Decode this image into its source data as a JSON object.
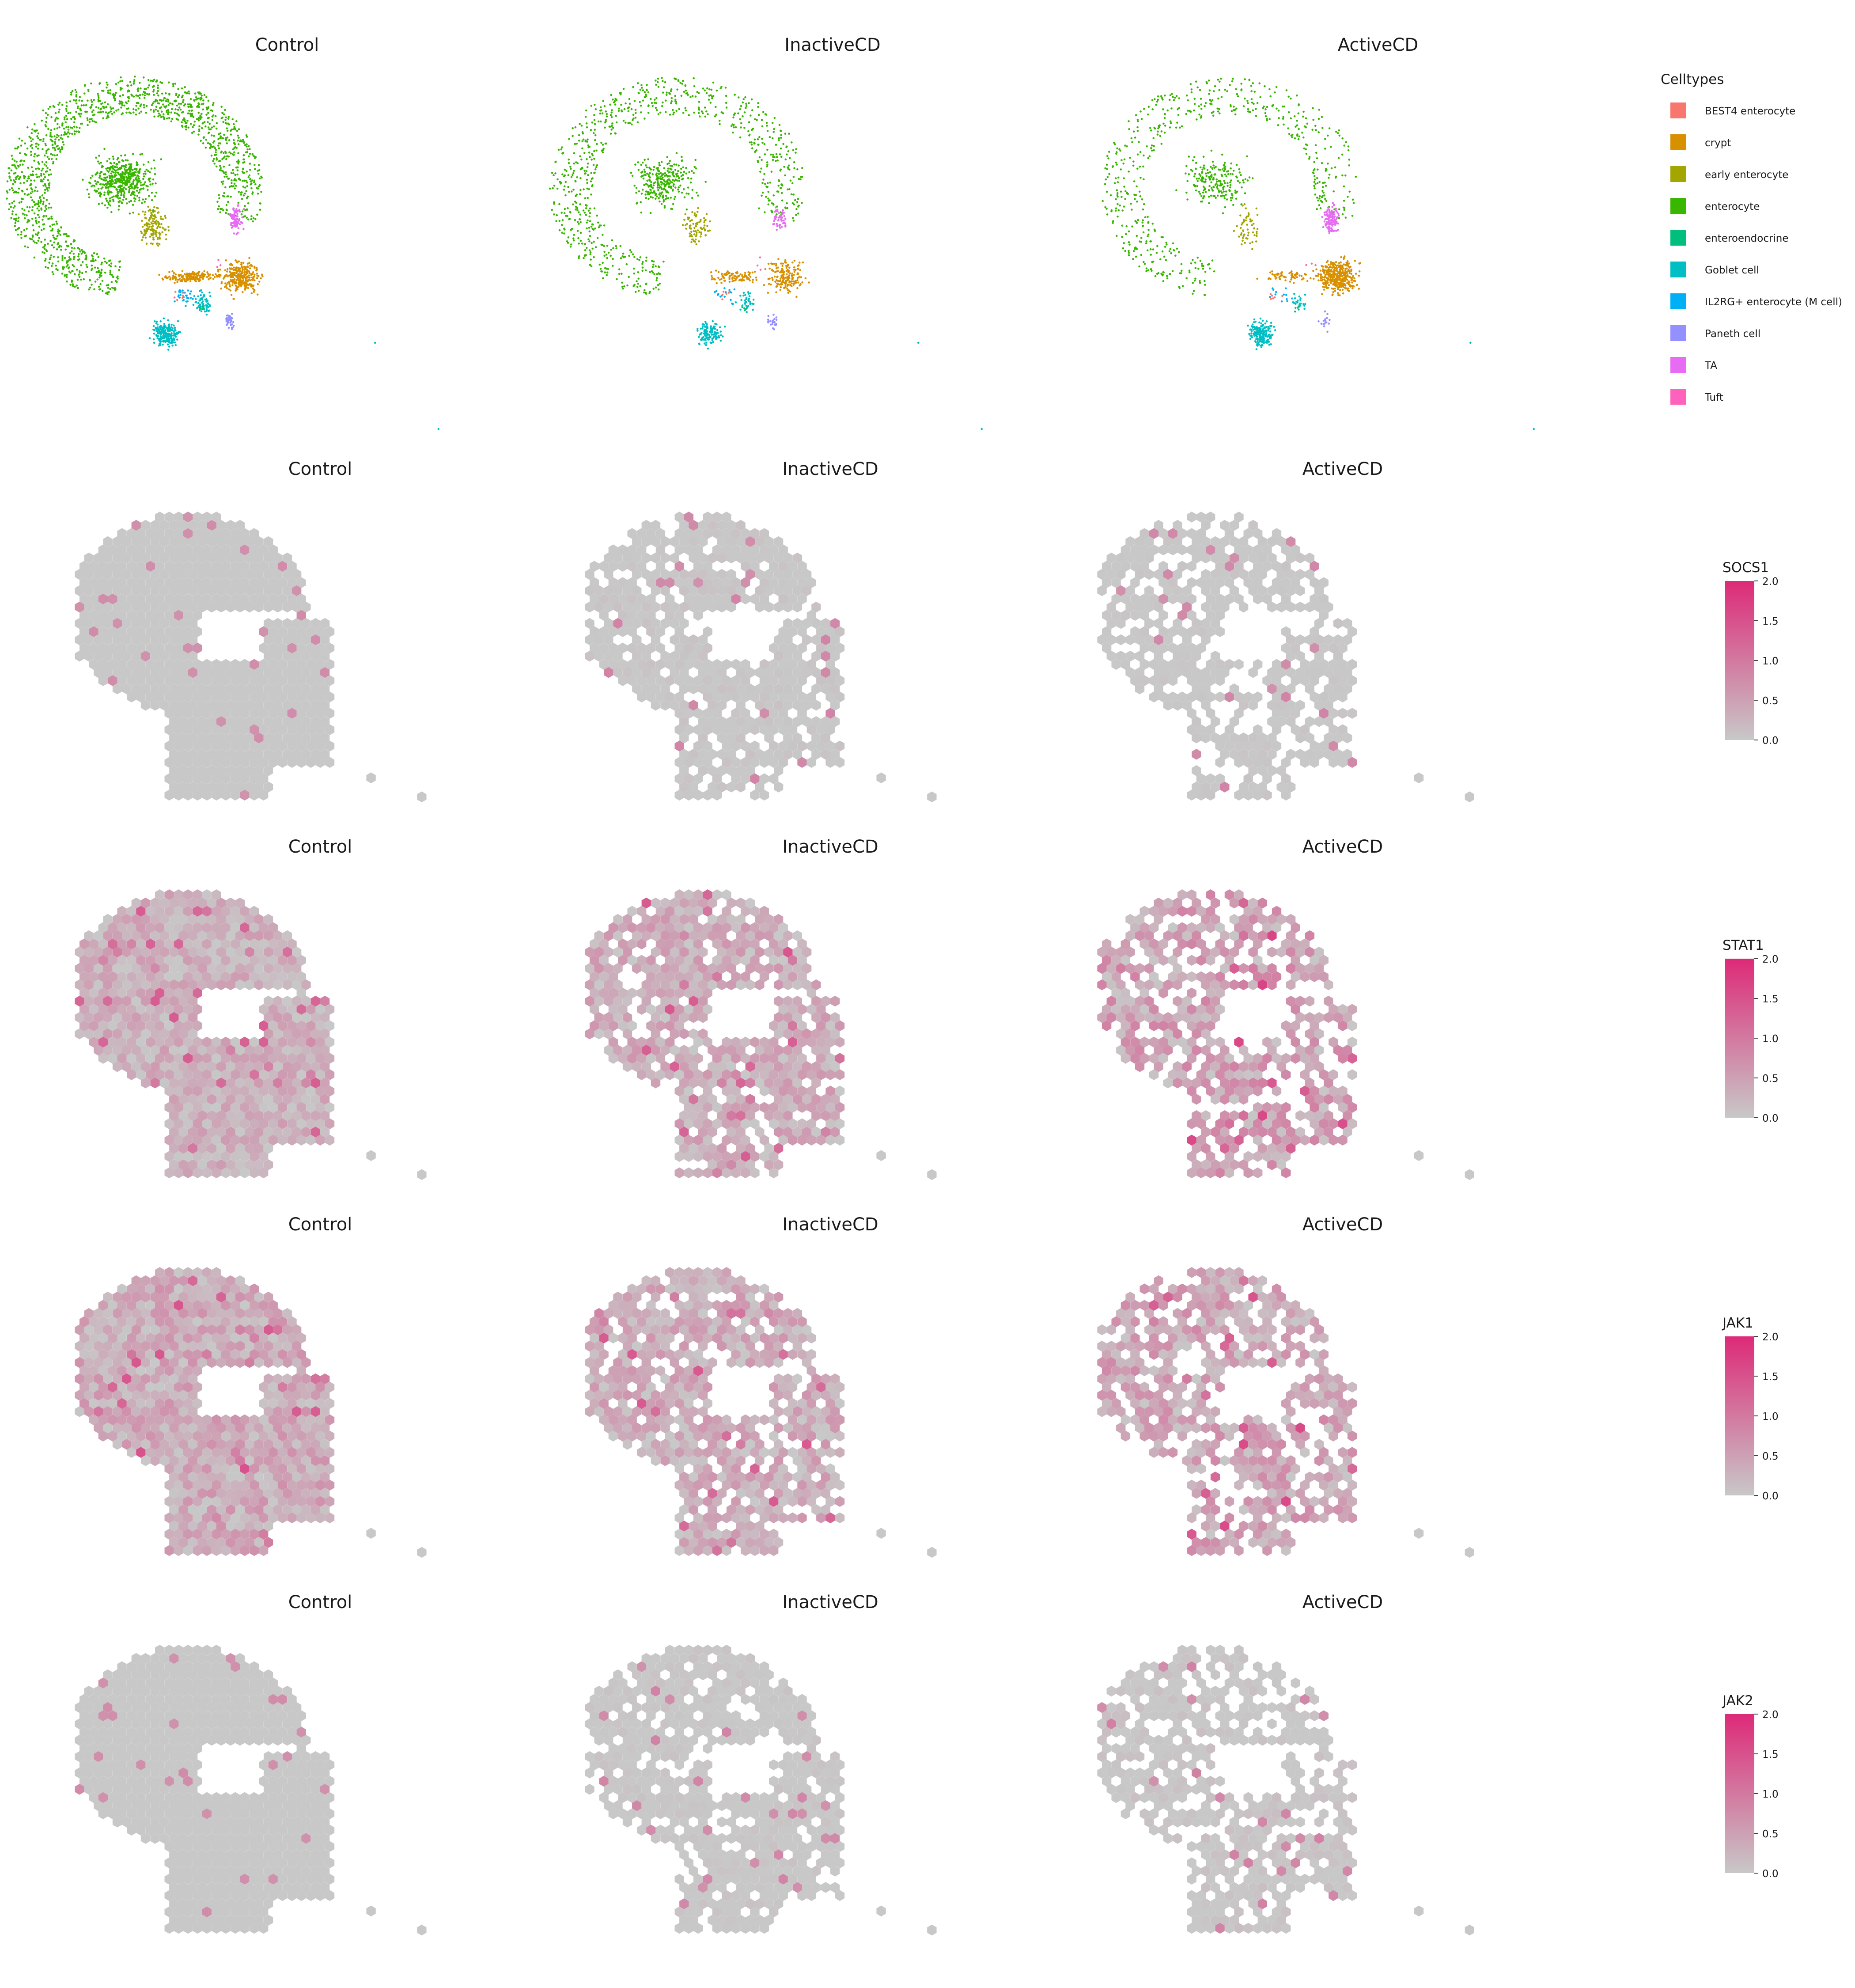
{
  "chart_data": {
    "type": "scatter",
    "panel_titles": [
      "Control",
      "InactiveCD",
      "ActiveCD"
    ],
    "row1": {
      "kind": "umap-scatter",
      "legend_title": "Celltypes",
      "celltypes": [
        {
          "name": "BEST4 enterocyte",
          "color": "#F8766D"
        },
        {
          "name": "crypt",
          "color": "#D89000"
        },
        {
          "name": "early enterocyte",
          "color": "#A3A500"
        },
        {
          "name": "enterocyte",
          "color": "#39B600"
        },
        {
          "name": "enteroendocrine",
          "color": "#00BF7D"
        },
        {
          "name": "Goblet cell",
          "color": "#00BFC4"
        },
        {
          "name": "IL2RG+ enterocyte (M cell)",
          "color": "#00B0F6"
        },
        {
          "name": "Paneth cell",
          "color": "#9590FF"
        },
        {
          "name": "TA",
          "color": "#E76BF3"
        },
        {
          "name": "Tuft",
          "color": "#FF62BC"
        }
      ]
    },
    "gene_rows": [
      {
        "gene": "SOCS1",
        "ticks": [
          "2.0",
          "1.5",
          "1.0",
          "0.5",
          "0.0"
        ],
        "mean_expression": [
          0.06,
          0.12,
          0.11
        ]
      },
      {
        "gene": "STAT1",
        "ticks": [
          "2.0",
          "1.5",
          "1.0",
          "0.5",
          "0.0"
        ],
        "mean_expression": [
          0.38,
          0.42,
          0.55
        ]
      },
      {
        "gene": "JAK1",
        "ticks": [
          "2.0",
          "1.5",
          "1.0",
          "0.5",
          "0.0"
        ],
        "mean_expression": [
          0.45,
          0.42,
          0.5
        ]
      },
      {
        "gene": "JAK2",
        "ticks": [
          "2.0",
          "1.5",
          "1.0",
          "0.5",
          "0.0"
        ],
        "mean_expression": [
          0.06,
          0.12,
          0.14
        ]
      }
    ],
    "colorscale": {
      "low": "#c8c8c8",
      "high": "#dd2a78",
      "min": 0,
      "max": 2
    }
  }
}
